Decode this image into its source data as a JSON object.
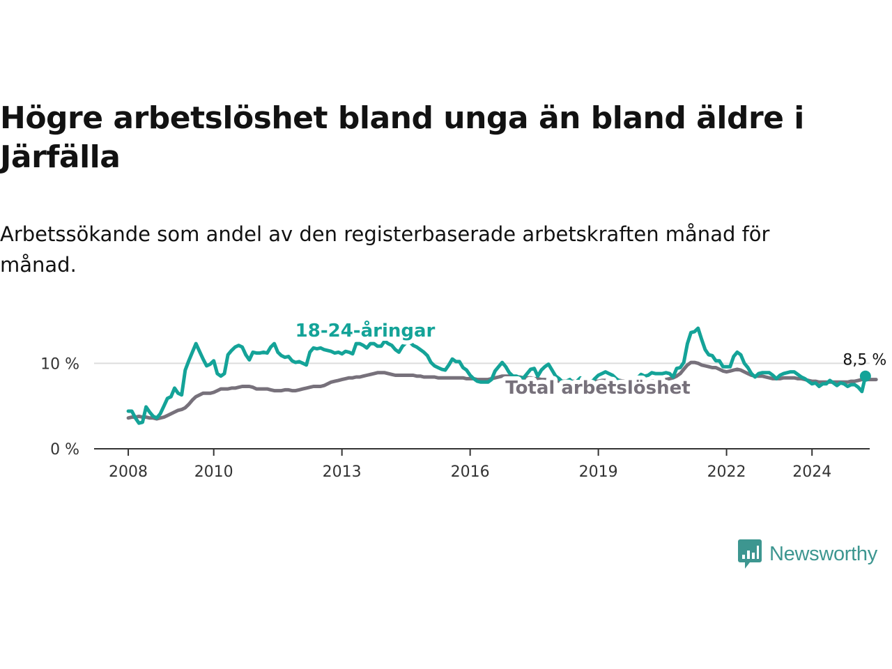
{
  "title": "Högre arbetslöshet bland unga än bland äldre i Järfälla",
  "subtitle": "Arbetssökande som andel av den registerbaserade arbetskraften månad för månad.",
  "brand": {
    "name": "Newsworthy"
  },
  "colors": {
    "youth": "#14a398",
    "total": "#77717b",
    "grid": "#dddddd",
    "axis": "#333333",
    "text": "#121212",
    "brand": "#3d9690"
  },
  "chart_data": {
    "type": "line",
    "x_unit": "year (decimal, monthly)",
    "x_start": 2008.0,
    "x_step": 0.083333,
    "xlim": [
      2007.2,
      2025.35
    ],
    "ylim": [
      0,
      15
    ],
    "x_ticks": [
      2008,
      2010,
      2013,
      2016,
      2019,
      2022,
      2024
    ],
    "x_tick_labels": [
      "2008",
      "2010",
      "2013",
      "2016",
      "2019",
      "2022",
      "2024"
    ],
    "y_ticks": [
      0,
      10
    ],
    "y_tick_labels": [
      "0 %",
      "10 %"
    ],
    "gridlines": [
      10
    ],
    "end_label": "8,5 %",
    "series": [
      {
        "name": "18-24-åringar",
        "label": "18-24-åringar",
        "color_key": "youth",
        "values": [
          4.4,
          4.4,
          3.6,
          3.0,
          3.1,
          4.9,
          4.3,
          3.8,
          3.6,
          4.1,
          5.0,
          5.9,
          6.1,
          7.1,
          6.5,
          6.3,
          9.2,
          10.3,
          11.3,
          12.3,
          11.4,
          10.5,
          9.7,
          9.9,
          10.3,
          8.8,
          8.5,
          8.8,
          11.0,
          11.5,
          11.9,
          12.1,
          11.9,
          11.0,
          10.4,
          11.3,
          11.2,
          11.2,
          11.3,
          11.2,
          11.9,
          12.3,
          11.3,
          10.9,
          10.7,
          10.8,
          10.3,
          10.1,
          10.2,
          10.0,
          9.8,
          11.3,
          11.8,
          11.7,
          11.8,
          11.6,
          11.5,
          11.4,
          11.2,
          11.3,
          11.1,
          11.4,
          11.3,
          11.1,
          12.3,
          12.3,
          12.1,
          11.8,
          12.3,
          12.3,
          12.0,
          12.0,
          12.6,
          12.3,
          12.1,
          11.6,
          11.3,
          12.0,
          12.4,
          12.5,
          12.1,
          11.9,
          11.6,
          11.3,
          10.9,
          10.1,
          9.7,
          9.5,
          9.3,
          9.2,
          9.8,
          10.5,
          10.2,
          10.2,
          9.5,
          9.2,
          8.6,
          8.2,
          7.9,
          7.8,
          7.8,
          7.8,
          8.1,
          9.1,
          9.6,
          10.1,
          9.6,
          8.9,
          8.5,
          8.5,
          8.3,
          8.3,
          8.8,
          9.3,
          9.4,
          8.5,
          9.2,
          9.6,
          9.9,
          9.2,
          8.5,
          8.2,
          7.8,
          7.9,
          8.1,
          7.6,
          7.9,
          8.3,
          7.5,
          7.6,
          7.7,
          8.2,
          8.6,
          8.8,
          9.0,
          8.8,
          8.6,
          8.2,
          7.9,
          7.8,
          7.7,
          7.5,
          7.7,
          8.3,
          8.7,
          8.5,
          8.6,
          8.9,
          8.8,
          8.8,
          8.8,
          8.9,
          8.8,
          8.4,
          9.4,
          9.5,
          10.1,
          12.3,
          13.6,
          13.7,
          14.1,
          12.8,
          11.6,
          11.0,
          10.9,
          10.3,
          10.3,
          9.6,
          9.6,
          9.6,
          10.8,
          11.3,
          11.0,
          10.0,
          9.5,
          8.8,
          8.4,
          8.8,
          8.9,
          8.9,
          8.9,
          8.6,
          8.2,
          8.6,
          8.8,
          8.9,
          9.0,
          9.0,
          8.7,
          8.4,
          8.2,
          7.9,
          7.6,
          7.7,
          7.3,
          7.6,
          7.6,
          8.0,
          7.7,
          7.4,
          7.7,
          7.6,
          7.3,
          7.5,
          7.5,
          7.2,
          6.7,
          8.5
        ]
      },
      {
        "name": "Total arbetslöshet",
        "label": "Total arbetslöshet",
        "color_key": "total",
        "values": [
          3.6,
          3.7,
          3.7,
          3.8,
          3.7,
          3.7,
          3.6,
          3.6,
          3.5,
          3.6,
          3.7,
          3.9,
          4.1,
          4.3,
          4.5,
          4.6,
          4.8,
          5.2,
          5.7,
          6.1,
          6.3,
          6.5,
          6.5,
          6.5,
          6.6,
          6.8,
          7.0,
          7.0,
          7.0,
          7.1,
          7.1,
          7.2,
          7.3,
          7.3,
          7.3,
          7.2,
          7.0,
          7.0,
          7.0,
          7.0,
          6.9,
          6.8,
          6.8,
          6.8,
          6.9,
          6.9,
          6.8,
          6.8,
          6.9,
          7.0,
          7.1,
          7.2,
          7.3,
          7.3,
          7.3,
          7.4,
          7.6,
          7.8,
          7.9,
          8.0,
          8.1,
          8.2,
          8.3,
          8.3,
          8.4,
          8.4,
          8.5,
          8.6,
          8.7,
          8.8,
          8.9,
          8.9,
          8.9,
          8.8,
          8.7,
          8.6,
          8.6,
          8.6,
          8.6,
          8.6,
          8.6,
          8.5,
          8.5,
          8.4,
          8.4,
          8.4,
          8.4,
          8.3,
          8.3,
          8.3,
          8.3,
          8.3,
          8.3,
          8.3,
          8.3,
          8.2,
          8.2,
          8.2,
          8.1,
          8.1,
          8.1,
          8.1,
          8.2,
          8.3,
          8.4,
          8.5,
          8.5,
          8.5,
          8.5,
          8.4,
          8.4,
          8.3,
          8.3,
          8.3,
          8.2,
          8.2,
          8.1,
          8.1,
          8.0,
          8.0,
          8.0,
          7.9,
          7.9,
          7.9,
          7.9,
          7.9,
          7.8,
          7.9,
          7.9,
          7.9,
          7.9,
          7.9,
          7.9,
          8.0,
          8.0,
          8.0,
          8.0,
          8.0,
          8.0,
          7.9,
          7.9,
          7.9,
          7.9,
          7.8,
          7.8,
          7.8,
          7.8,
          7.9,
          7.9,
          8.0,
          8.1,
          8.1,
          8.2,
          8.3,
          8.5,
          8.8,
          9.3,
          9.8,
          10.1,
          10.1,
          10.0,
          9.8,
          9.7,
          9.6,
          9.5,
          9.5,
          9.3,
          9.1,
          9.0,
          9.1,
          9.2,
          9.3,
          9.2,
          9.0,
          8.8,
          8.6,
          8.5,
          8.5,
          8.5,
          8.4,
          8.3,
          8.2,
          8.2,
          8.2,
          8.3,
          8.3,
          8.3,
          8.3,
          8.2,
          8.2,
          8.1,
          8.0,
          7.9,
          7.9,
          7.8,
          7.8,
          7.8,
          7.8,
          7.8,
          7.8,
          7.8,
          7.8,
          7.8,
          7.9,
          7.9,
          8.0,
          8.1,
          8.1,
          8.1,
          8.1,
          8.1
        ]
      }
    ]
  }
}
